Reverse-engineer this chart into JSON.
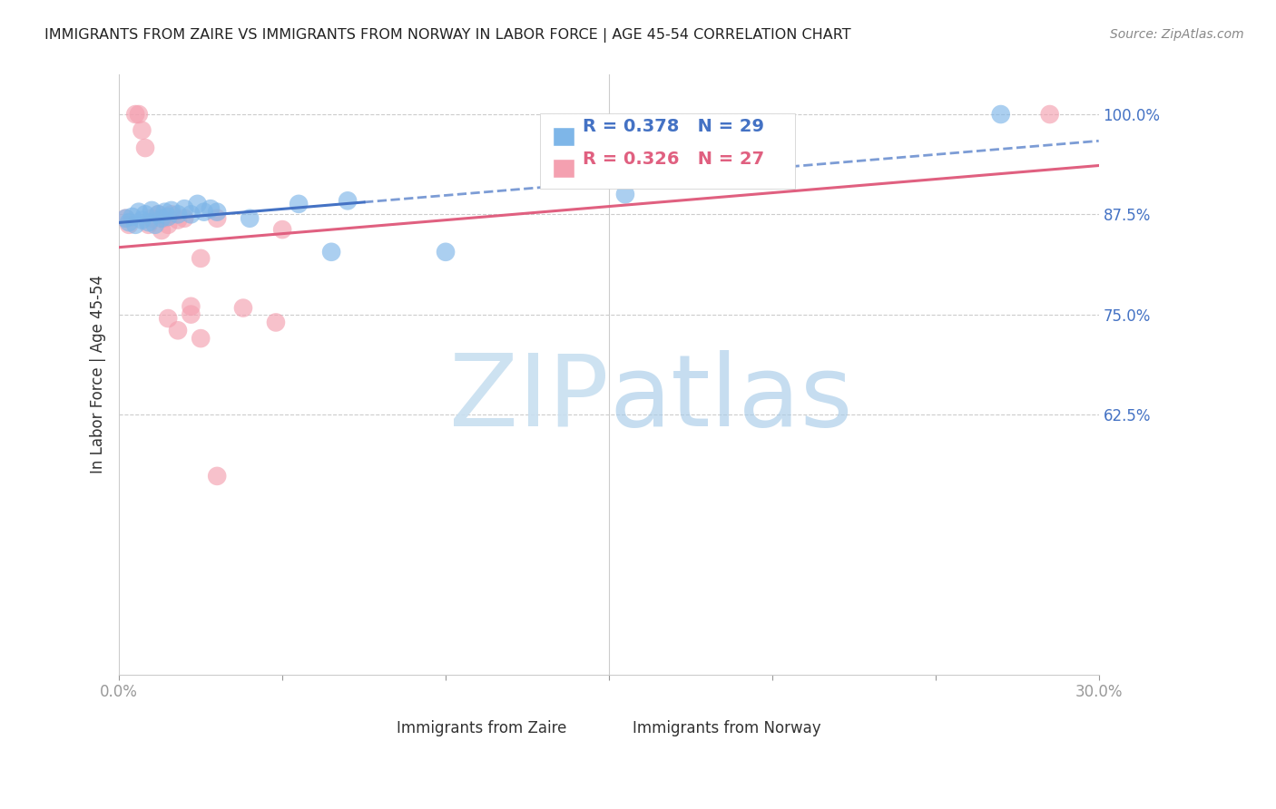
{
  "title": "IMMIGRANTS FROM ZAIRE VS IMMIGRANTS FROM NORWAY IN LABOR FORCE | AGE 45-54 CORRELATION CHART",
  "source": "Source: ZipAtlas.com",
  "ylabel": "In Labor Force | Age 45-54",
  "xmin": 0.0,
  "xmax": 0.3,
  "ymin": 0.3,
  "ymax": 1.05,
  "R_zaire": 0.378,
  "N_zaire": 29,
  "R_norway": 0.326,
  "N_norway": 27,
  "legend_label_zaire": "Immigrants from Zaire",
  "legend_label_norway": "Immigrants from Norway",
  "color_zaire": "#7EB6E8",
  "color_norway": "#F4A0B0",
  "line_color_zaire": "#4472C4",
  "line_color_norway": "#E06080",
  "ytick_vals": [
    0.625,
    0.75,
    0.875,
    1.0
  ],
  "ytick_labels": [
    "62.5%",
    "75.0%",
    "87.5%",
    "100.0%"
  ],
  "zaire_x": [
    0.002,
    0.003,
    0.004,
    0.005,
    0.006,
    0.007,
    0.008,
    0.009,
    0.01,
    0.011,
    0.012,
    0.013,
    0.014,
    0.015,
    0.016,
    0.018,
    0.02,
    0.022,
    0.024,
    0.026,
    0.028,
    0.03,
    0.04,
    0.055,
    0.065,
    0.07,
    0.1,
    0.155,
    0.27
  ],
  "zaire_y": [
    0.87,
    0.865,
    0.872,
    0.862,
    0.878,
    0.868,
    0.875,
    0.865,
    0.88,
    0.862,
    0.875,
    0.87,
    0.878,
    0.872,
    0.88,
    0.875,
    0.882,
    0.875,
    0.888,
    0.878,
    0.882,
    0.878,
    0.87,
    0.888,
    0.828,
    0.892,
    0.828,
    0.9,
    1.0
  ],
  "norway_x": [
    0.002,
    0.003,
    0.005,
    0.006,
    0.007,
    0.008,
    0.009,
    0.01,
    0.012,
    0.013,
    0.014,
    0.015,
    0.016,
    0.018,
    0.02,
    0.022,
    0.025,
    0.03,
    0.038,
    0.05,
    0.015,
    0.018,
    0.022,
    0.025,
    0.03,
    0.048,
    0.285
  ],
  "norway_y": [
    0.87,
    0.862,
    1.0,
    1.0,
    0.98,
    0.958,
    0.862,
    0.87,
    0.875,
    0.855,
    0.87,
    0.862,
    0.875,
    0.868,
    0.87,
    0.76,
    0.82,
    0.87,
    0.758,
    0.856,
    0.745,
    0.73,
    0.75,
    0.72,
    0.548,
    0.74,
    1.0
  ]
}
